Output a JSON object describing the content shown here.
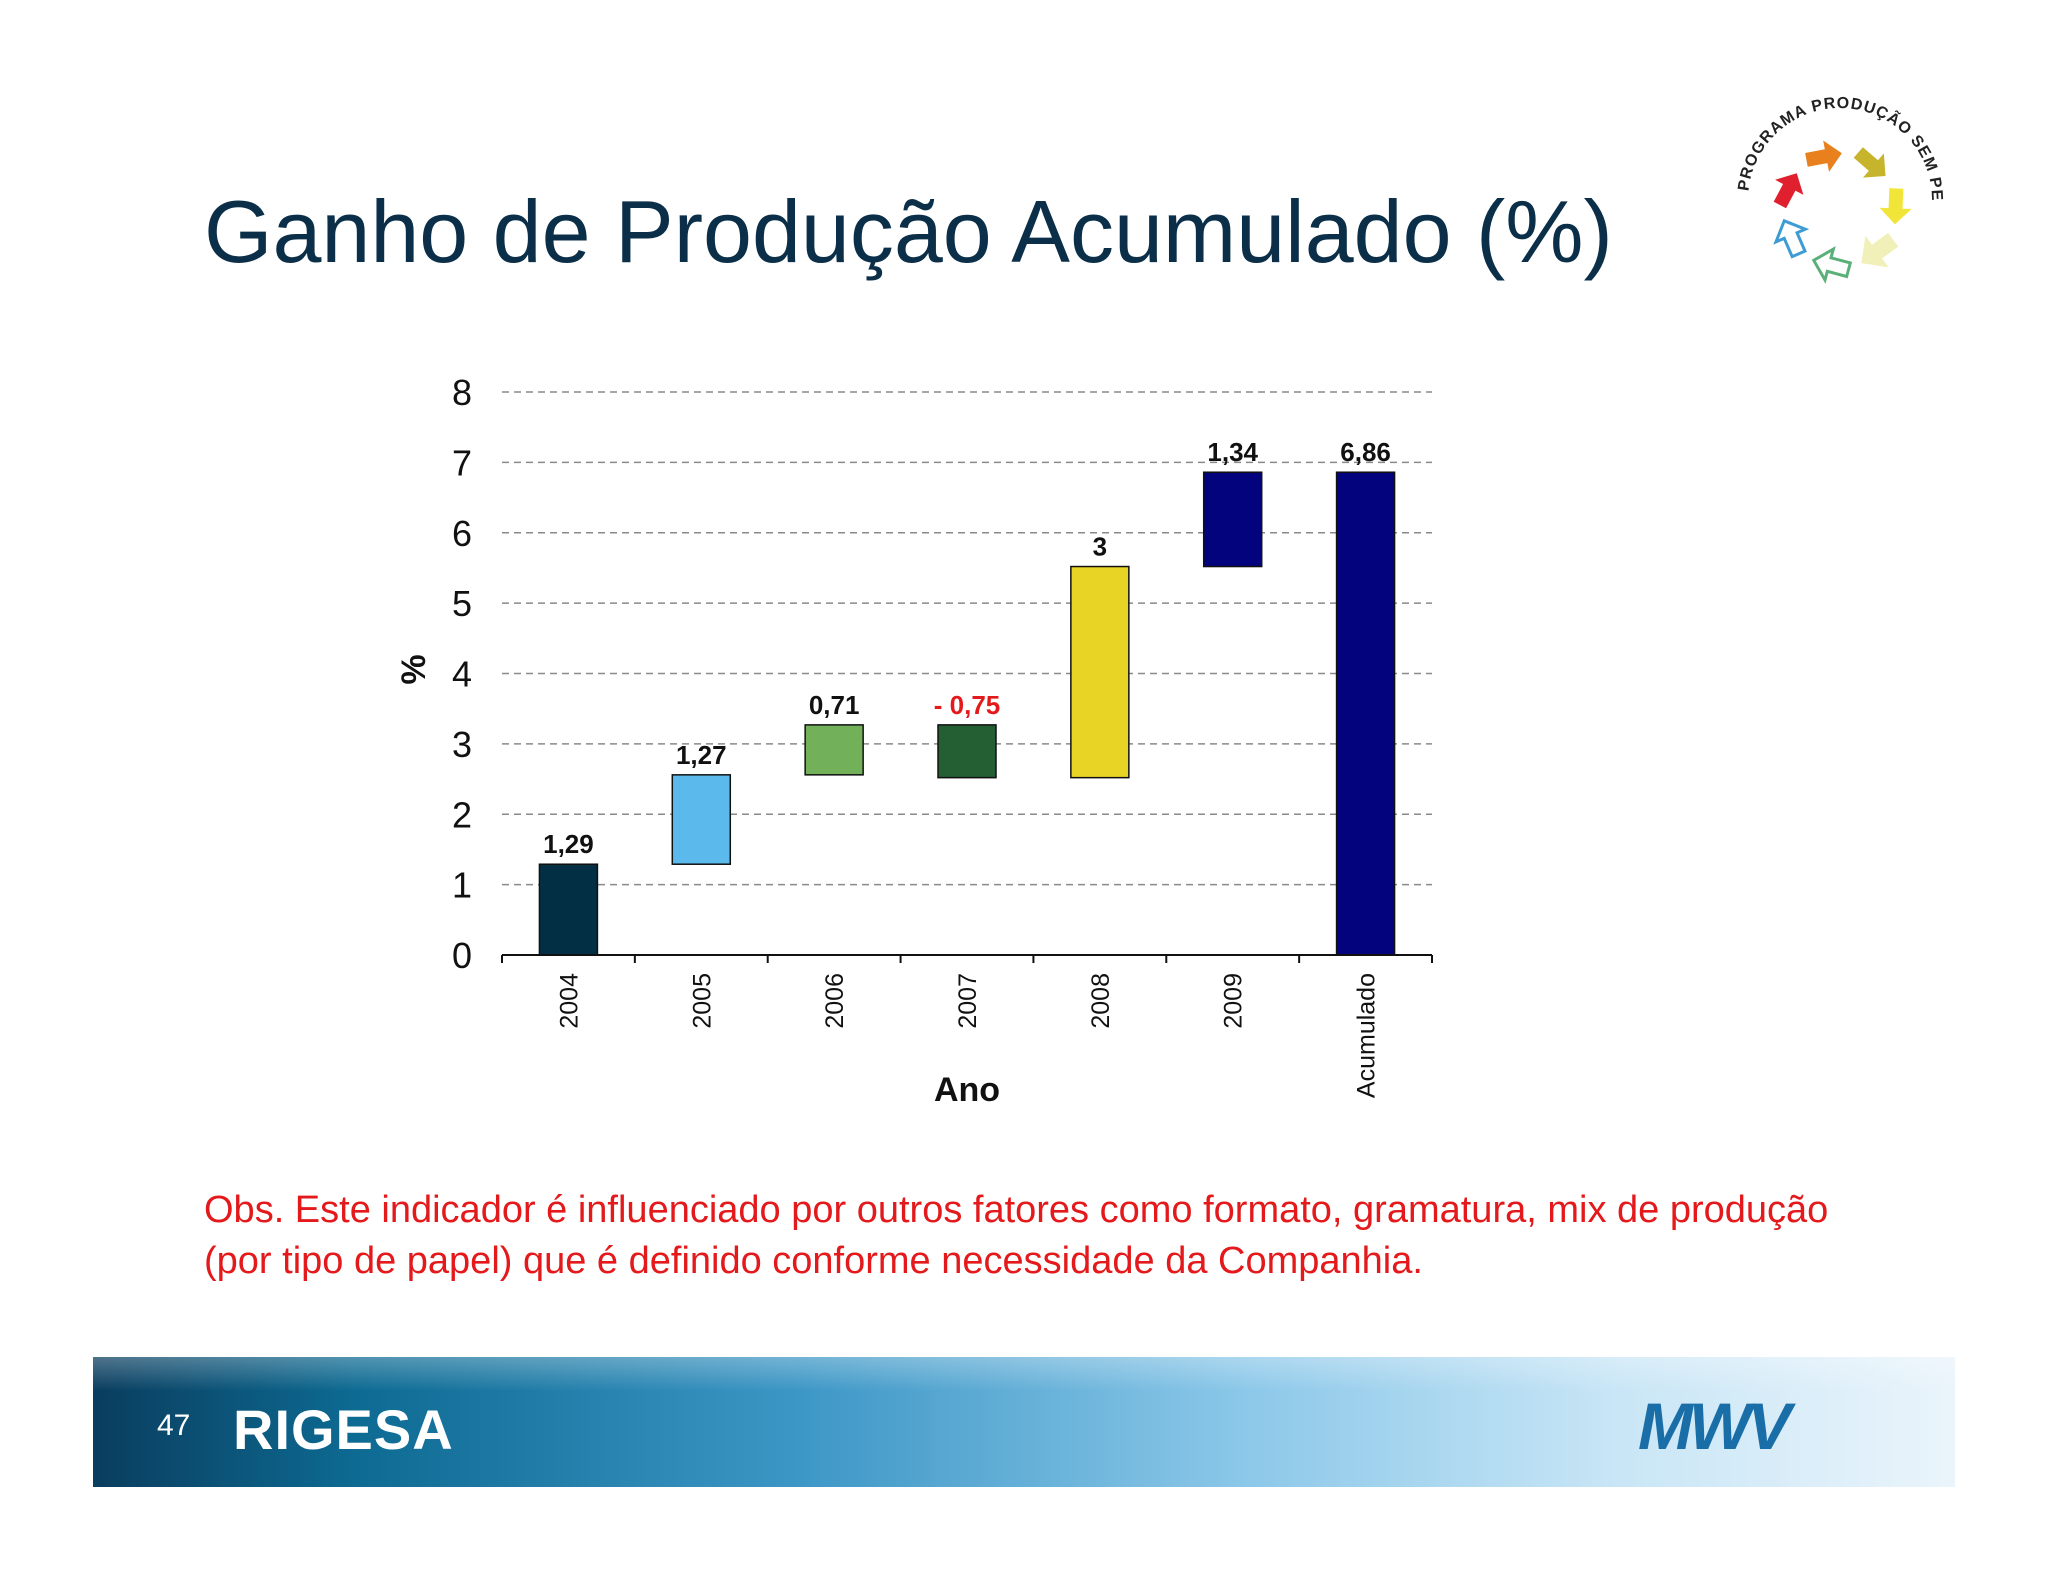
{
  "slide": {
    "title": "Ganho de Produção Acumulado (%)",
    "note": "Obs. Este indicador é influenciado por outros fatores como formato, gramatura, mix de produção (por tipo de papel) que é definido conforme necessidade da Companhia.",
    "page_number": "47"
  },
  "logo": {
    "program_text": "PROGRAMA PRODUÇÃO SEM PERDAS",
    "arrow_colors": [
      "#e0202e",
      "#e8801d",
      "#c6b42c",
      "#f2e53a",
      "#f1f0b8",
      "#5bb07a",
      "#3d9cd4"
    ]
  },
  "footer": {
    "brand_left": "RIGESA",
    "brand_right": "MWV",
    "brand_right_color": "#1a6ea8"
  },
  "chart_data": {
    "type": "bar",
    "subtype": "waterfall",
    "title": "",
    "xlabel": "Ano",
    "ylabel": "%",
    "ylim": [
      0,
      8
    ],
    "yticks": [
      "0",
      "1",
      "2",
      "3",
      "4",
      "5",
      "6",
      "7",
      "8"
    ],
    "grid": "horizontal dashed",
    "categories": [
      "2004",
      "2005",
      "2006",
      "2007",
      "2008",
      "2009",
      "Acumulado"
    ],
    "bars": [
      {
        "category": "2004",
        "start": 0,
        "end": 1.29,
        "label": "1,29",
        "color": "#032f45",
        "label_color": "#111111"
      },
      {
        "category": "2005",
        "start": 1.29,
        "end": 2.56,
        "label": "1,27",
        "color": "#5bb9eb",
        "label_color": "#111111"
      },
      {
        "category": "2006",
        "start": 2.56,
        "end": 3.27,
        "label": "0,71",
        "color": "#72b05a",
        "label_color": "#111111"
      },
      {
        "category": "2007",
        "start": 3.27,
        "end": 2.52,
        "label": "- 0,75",
        "color": "#245e33",
        "label_color": "#e3191b"
      },
      {
        "category": "2008",
        "start": 2.52,
        "end": 5.52,
        "label": "3",
        "color": "#e8d424",
        "label_color": "#111111"
      },
      {
        "category": "2009",
        "start": 5.52,
        "end": 6.86,
        "label": "1,34",
        "color": "#03037e",
        "label_color": "#111111"
      },
      {
        "category": "Acumulado",
        "start": 0,
        "end": 6.86,
        "label": "6,86",
        "color": "#03037e",
        "label_color": "#111111"
      }
    ]
  }
}
